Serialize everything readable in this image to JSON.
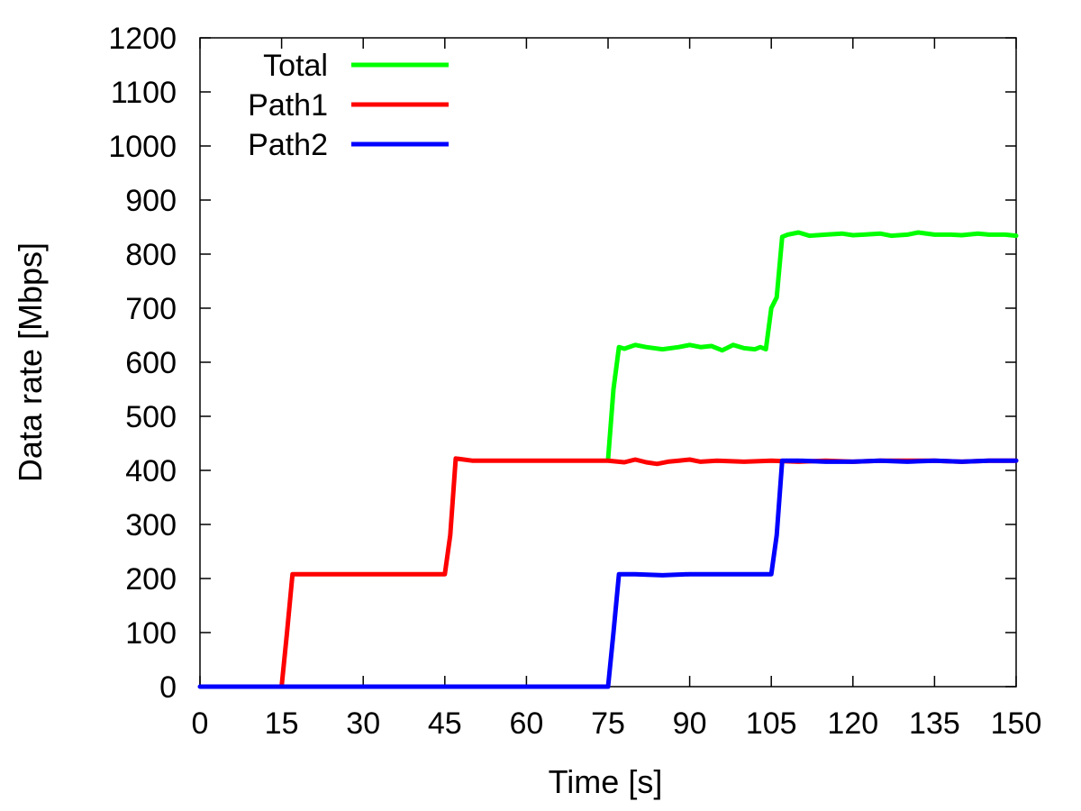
{
  "chart_data": {
    "type": "line",
    "title": "",
    "xlabel": "Time [s]",
    "ylabel": "Data rate [Mbps]",
    "xlim": [
      0,
      150
    ],
    "ylim": [
      0,
      1200
    ],
    "xticks": [
      "0",
      "15",
      "30",
      "45",
      "60",
      "75",
      "90",
      "105",
      "120",
      "135",
      "150"
    ],
    "yticks": [
      "0",
      "100",
      "200",
      "300",
      "400",
      "500",
      "600",
      "700",
      "800",
      "900",
      "1000",
      "1100",
      "1200"
    ],
    "grid": false,
    "legend_position": "top-left",
    "series": [
      {
        "name": "Total",
        "color": "#00ff00",
        "points": [
          [
            75,
            420
          ],
          [
            76,
            550
          ],
          [
            77,
            628
          ],
          [
            78,
            625
          ],
          [
            80,
            632
          ],
          [
            82,
            628
          ],
          [
            85,
            624
          ],
          [
            88,
            628
          ],
          [
            90,
            632
          ],
          [
            92,
            628
          ],
          [
            94,
            630
          ],
          [
            96,
            622
          ],
          [
            98,
            632
          ],
          [
            100,
            626
          ],
          [
            102,
            624
          ],
          [
            103,
            628
          ],
          [
            104,
            624
          ],
          [
            105,
            700
          ],
          [
            106,
            720
          ],
          [
            107,
            832
          ],
          [
            108,
            836
          ],
          [
            110,
            840
          ],
          [
            112,
            834
          ],
          [
            115,
            836
          ],
          [
            118,
            838
          ],
          [
            120,
            835
          ],
          [
            122,
            836
          ],
          [
            125,
            838
          ],
          [
            127,
            834
          ],
          [
            130,
            836
          ],
          [
            132,
            840
          ],
          [
            135,
            836
          ],
          [
            138,
            836
          ],
          [
            140,
            835
          ],
          [
            143,
            838
          ],
          [
            145,
            836
          ],
          [
            148,
            836
          ],
          [
            150,
            834
          ]
        ]
      },
      {
        "name": "Path1",
        "color": "#ff0000",
        "points": [
          [
            15,
            0
          ],
          [
            16,
            100
          ],
          [
            17,
            208
          ],
          [
            20,
            208
          ],
          [
            30,
            208
          ],
          [
            40,
            208
          ],
          [
            45,
            208
          ],
          [
            46,
            280
          ],
          [
            47,
            422
          ],
          [
            50,
            418
          ],
          [
            55,
            418
          ],
          [
            60,
            418
          ],
          [
            65,
            418
          ],
          [
            70,
            418
          ],
          [
            75,
            418
          ],
          [
            78,
            415
          ],
          [
            80,
            420
          ],
          [
            82,
            415
          ],
          [
            84,
            412
          ],
          [
            86,
            416
          ],
          [
            88,
            418
          ],
          [
            90,
            420
          ],
          [
            92,
            416
          ],
          [
            95,
            418
          ],
          [
            100,
            416
          ],
          [
            105,
            418
          ],
          [
            110,
            416
          ],
          [
            115,
            418
          ],
          [
            120,
            416
          ],
          [
            125,
            418
          ],
          [
            130,
            418
          ],
          [
            135,
            418
          ],
          [
            140,
            416
          ],
          [
            145,
            418
          ],
          [
            150,
            418
          ]
        ]
      },
      {
        "name": "Path2",
        "color": "#0000ff",
        "points": [
          [
            0,
            0
          ],
          [
            15,
            0
          ],
          [
            30,
            0
          ],
          [
            45,
            0
          ],
          [
            60,
            0
          ],
          [
            75,
            0
          ],
          [
            76,
            100
          ],
          [
            77,
            208
          ],
          [
            80,
            208
          ],
          [
            85,
            206
          ],
          [
            90,
            208
          ],
          [
            95,
            208
          ],
          [
            100,
            208
          ],
          [
            105,
            208
          ],
          [
            106,
            280
          ],
          [
            107,
            418
          ],
          [
            110,
            418
          ],
          [
            115,
            416
          ],
          [
            120,
            416
          ],
          [
            125,
            418
          ],
          [
            130,
            416
          ],
          [
            135,
            418
          ],
          [
            140,
            416
          ],
          [
            145,
            418
          ],
          [
            150,
            418
          ]
        ]
      }
    ]
  }
}
